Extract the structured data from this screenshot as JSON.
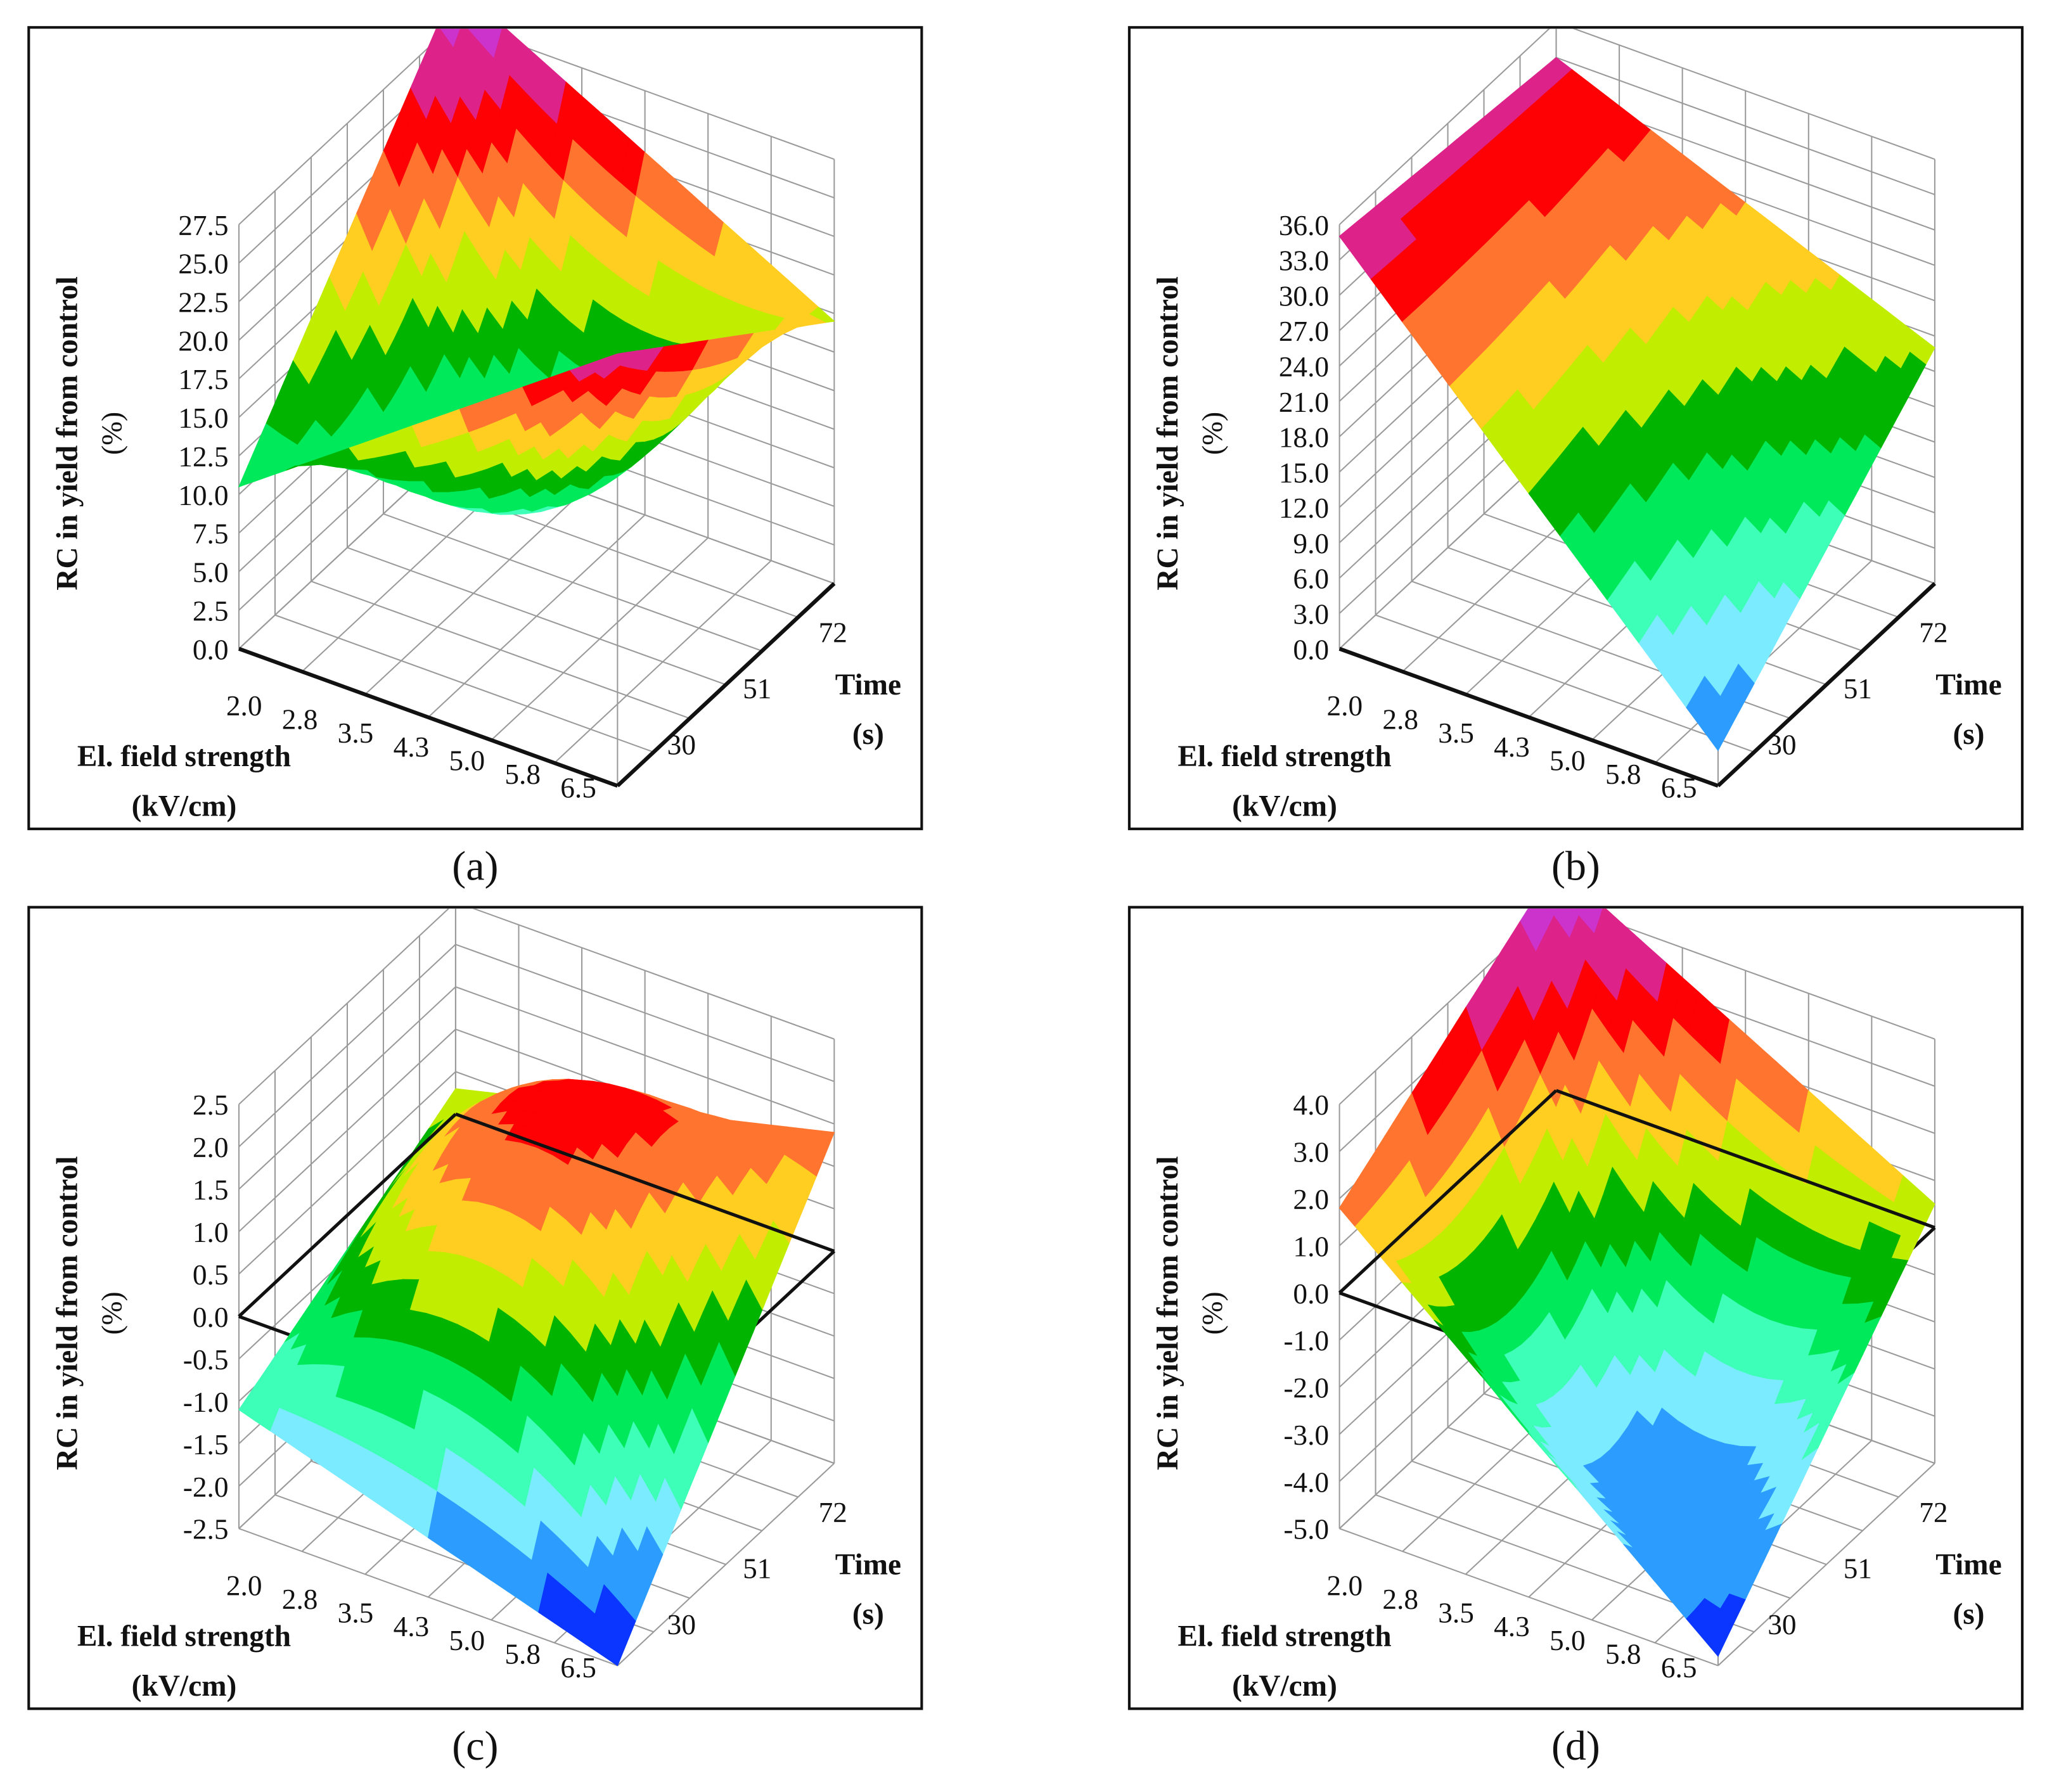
{
  "chart_data": [
    {
      "type": "surface",
      "caption": "(a)",
      "ylabel": "RC in yield from control",
      "ylabel_unit": "(%)",
      "xlabel": "El. field strength",
      "xlabel_unit": "(kV/cm)",
      "tlabel": "Time",
      "tlabel_unit": "(s)",
      "x_ticks": [
        "2.0",
        "2.8",
        "3.5",
        "4.3",
        "5.0",
        "5.8",
        "6.5"
      ],
      "t_ticks": [
        "30",
        "51",
        "72"
      ],
      "y_ticks": [
        "0.0",
        "2.5",
        "5.0",
        "7.5",
        "10.0",
        "12.5",
        "15.0",
        "17.5",
        "20.0",
        "22.5",
        "25.0",
        "27.5"
      ],
      "ylim": [
        0,
        27.5
      ],
      "zero_plane": false,
      "z_estimate": {
        "field_2.0_time_30": 10.5,
        "field_6.5_time_30": 28,
        "field_2.0_time_72": 30,
        "field_6.5_time_72": 17,
        "center": 8
      }
    },
    {
      "type": "surface",
      "caption": "(b)",
      "ylabel": "RC in yield from control",
      "ylabel_unit": "(%)",
      "xlabel": "El. field strength",
      "xlabel_unit": "(kV/cm)",
      "tlabel": "Time",
      "tlabel_unit": "(s)",
      "x_ticks": [
        "2.0",
        "2.8",
        "3.5",
        "4.3",
        "5.0",
        "5.8",
        "6.5"
      ],
      "t_ticks": [
        "30",
        "51",
        "72"
      ],
      "y_ticks": [
        "0.0",
        "3.0",
        "6.0",
        "9.0",
        "12.0",
        "15.0",
        "18.0",
        "21.0",
        "24.0",
        "27.0",
        "30.0",
        "33.0",
        "36.0"
      ],
      "ylim": [
        0,
        36
      ],
      "zero_plane": false,
      "z_estimate": {
        "field_2.0_time_30": 35,
        "field_6.5_time_30": 3,
        "field_2.0_time_72": 33,
        "field_6.5_time_72": 20,
        "center": 22
      }
    },
    {
      "type": "surface",
      "caption": "(c)",
      "ylabel": "RC in yield from control",
      "ylabel_unit": "(%)",
      "xlabel": "El. field strength",
      "xlabel_unit": "(kV/cm)",
      "tlabel": "Time",
      "tlabel_unit": "(s)",
      "x_ticks": [
        "2.0",
        "2.8",
        "3.5",
        "4.3",
        "5.0",
        "5.8",
        "6.5"
      ],
      "t_ticks": [
        "30",
        "51",
        "72"
      ],
      "y_ticks": [
        "-2.5",
        "-2.0",
        "-1.5",
        "-1.0",
        "-0.5",
        "0.0",
        "0.5",
        "1.0",
        "1.5",
        "2.0",
        "2.5"
      ],
      "ylim": [
        -2.5,
        2.5
      ],
      "zero_plane": true,
      "z_estimate": {
        "field_2.0_time_30": -1.1,
        "field_6.5_time_30": -2.5,
        "field_2.0_time_72": 0.3,
        "field_6.5_time_72": 1.4,
        "center": 1.6
      }
    },
    {
      "type": "surface",
      "caption": "(d)",
      "ylabel": "RC in yield from control",
      "ylabel_unit": "(%)",
      "xlabel": "El. field strength",
      "xlabel_unit": "(kV/cm)",
      "tlabel": "Time",
      "tlabel_unit": "(s)",
      "x_ticks": [
        "2.0",
        "2.8",
        "3.5",
        "4.3",
        "5.0",
        "5.8",
        "6.5"
      ],
      "t_ticks": [
        "30",
        "51",
        "72"
      ],
      "y_ticks": [
        "-5.0",
        "-4.0",
        "-3.0",
        "-2.0",
        "-1.0",
        "0.0",
        "1.0",
        "2.0",
        "3.0",
        "4.0"
      ],
      "ylim": [
        -5,
        4
      ],
      "zero_plane": true,
      "z_estimate": {
        "field_2.0_time_30": 1.8,
        "field_6.5_time_30": -4.8,
        "field_2.0_time_72": 4.8,
        "field_6.5_time_72": 0.5,
        "center": -3.2
      }
    }
  ],
  "colors": {
    "grid": "#9a9a9a",
    "axis": "#111111"
  }
}
